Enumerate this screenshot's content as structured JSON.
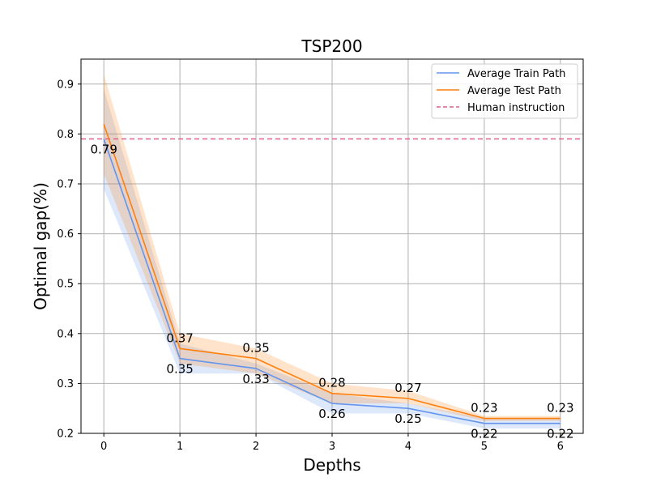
{
  "chart_data": {
    "type": "line",
    "title": "TSP200",
    "xlabel": "Depths",
    "ylabel": "Optimal gap(%)",
    "x": [
      0,
      1,
      2,
      3,
      4,
      5,
      6
    ],
    "xlim": [
      -0.3,
      6.3
    ],
    "ylim": [
      0.2,
      0.95
    ],
    "xticks": [
      "0",
      "1",
      "2",
      "3",
      "4",
      "5",
      "6"
    ],
    "yticks": [
      "0.2",
      "0.3",
      "0.4",
      "0.5",
      "0.6",
      "0.7",
      "0.8",
      "0.9"
    ],
    "ytick_values": [
      0.2,
      0.3,
      0.4,
      0.5,
      0.6,
      0.7,
      0.8,
      0.9
    ],
    "grid": true,
    "legend_position": "top-right",
    "series": [
      {
        "name": "Average Train Path",
        "color": "#6495ED",
        "values": [
          0.79,
          0.35,
          0.33,
          0.26,
          0.25,
          0.22,
          0.22
        ],
        "band_lower": [
          0.69,
          0.32,
          0.32,
          0.24,
          0.24,
          0.21,
          0.21
        ],
        "band_upper": [
          0.89,
          0.38,
          0.34,
          0.28,
          0.26,
          0.23,
          0.23
        ],
        "labels": [
          "0.79",
          "0.35",
          "0.33",
          "0.26",
          "0.25",
          "0.22",
          "0.22"
        ],
        "label_position": "below"
      },
      {
        "name": "Average Test Path",
        "color": "#FF7F0E",
        "values": [
          0.82,
          0.37,
          0.35,
          0.28,
          0.27,
          0.23,
          0.23
        ],
        "band_lower": [
          0.72,
          0.34,
          0.32,
          0.26,
          0.26,
          0.225,
          0.225
        ],
        "band_upper": [
          0.92,
          0.4,
          0.37,
          0.3,
          0.285,
          0.235,
          0.235
        ],
        "labels": [
          "",
          "0.37",
          "0.35",
          "0.28",
          "0.27",
          "0.23",
          "0.23"
        ],
        "label_position": "above"
      }
    ],
    "reference_line": {
      "name": "Human instruction",
      "value": 0.79,
      "color": "#E0608A",
      "style": "dashed"
    }
  }
}
